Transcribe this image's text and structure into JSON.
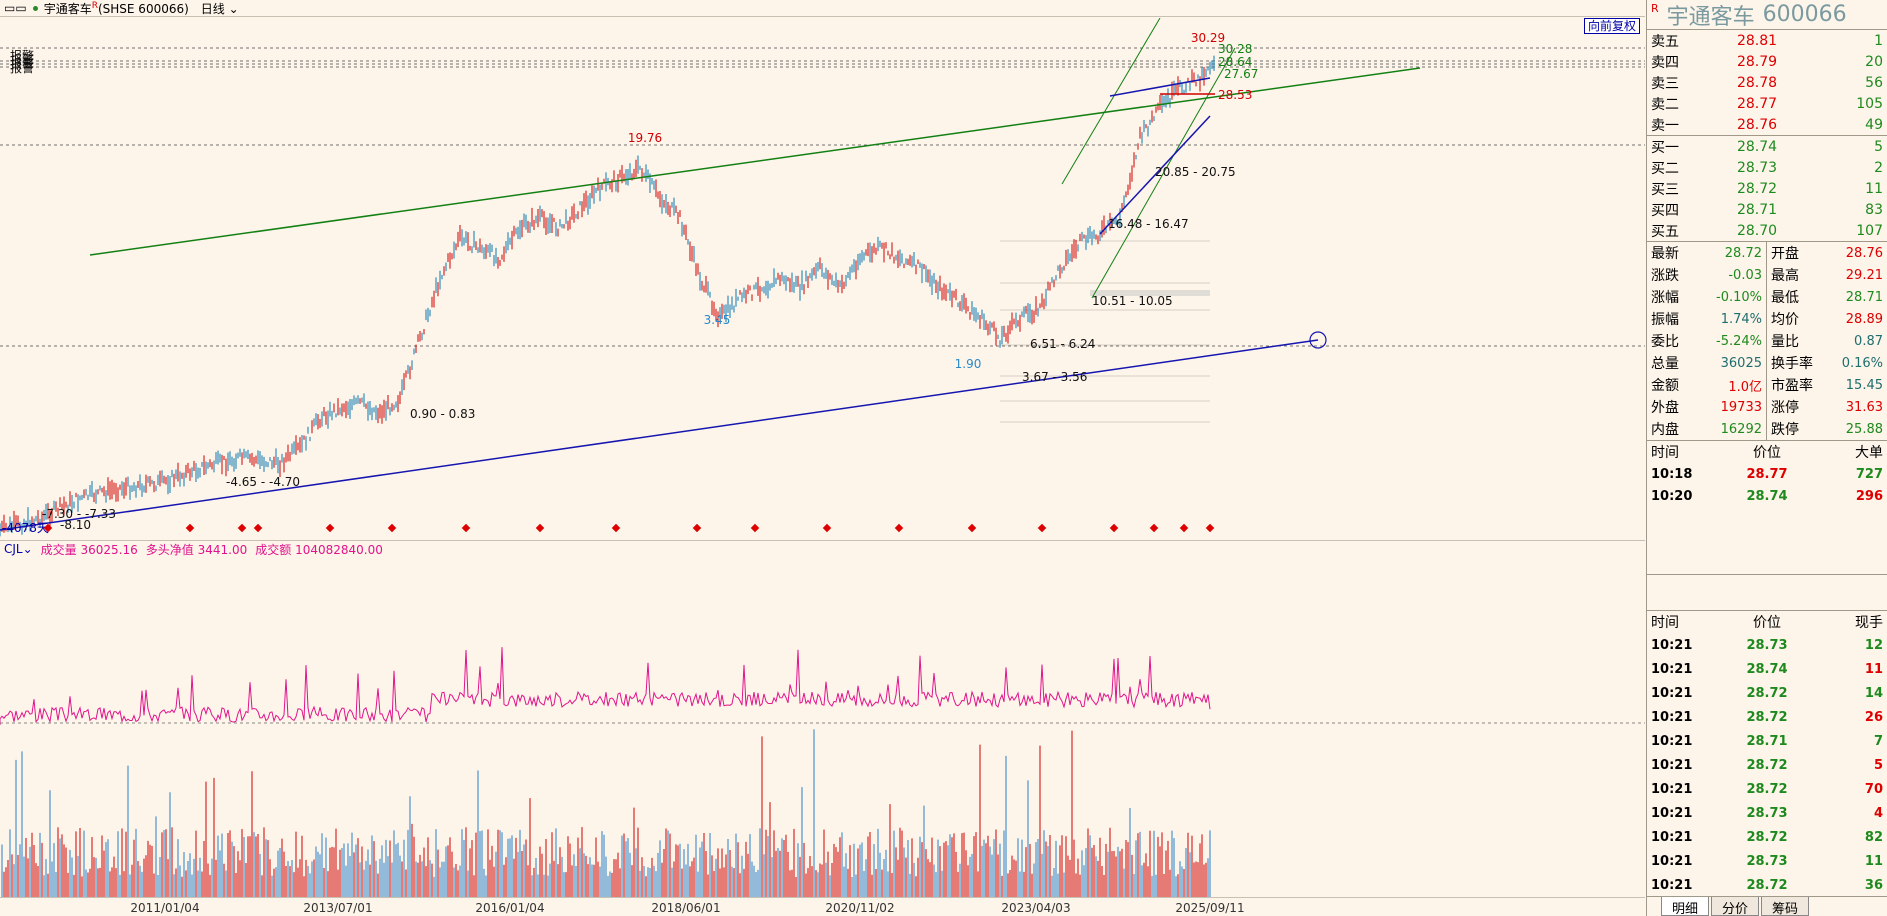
{
  "topbar": {
    "menu_glyph": "▭▭",
    "title": "宇通客车",
    "title_mark": "R",
    "code": "(SHSE 600066)",
    "period": "日线"
  },
  "restore_button": "向前复权",
  "price_labels": {
    "peak_2018": "19.76",
    "low_2019": "3.45",
    "low_2022": "1.90",
    "high_recent": "30.29",
    "r1": "30.28",
    "r2": "28.64",
    "r3": "27.67",
    "r4": "28.53",
    "gap1": "20.85 - 20.75",
    "gap2": "16.48 - 16.47",
    "gap3": "10.51 - 10.05",
    "gap4": "6.51 - 6.24",
    "gap5": "3.67 - 3.56",
    "gap6": "0.90 - 0.83",
    "gap7": "-4.65 - -4.70",
    "gap8": "-7.30 - -7.33",
    "gap9": "-8.10",
    "start_value": "-4078天",
    "alarm_labels": [
      "报警",
      "报警",
      "报警",
      "报警"
    ]
  },
  "volume_header": {
    "indicator": "CJL",
    "vol_label": "成交量",
    "vol_value": "36025.16",
    "net_label": "多头净值",
    "net_value": "3441.00",
    "amt_label": "成交额",
    "amt_value": "104082840.00"
  },
  "x_axis": [
    "2011/01/04",
    "2013/07/01",
    "2016/01/04",
    "2018/06/01",
    "2020/11/02",
    "2023/04/03",
    "2025/09/11"
  ],
  "stock": {
    "mark": "R",
    "name": "宇通客车",
    "code": "600066"
  },
  "order_book": {
    "sell": [
      {
        "label": "卖五",
        "price": "28.81",
        "vol": "1"
      },
      {
        "label": "卖四",
        "price": "28.79",
        "vol": "20"
      },
      {
        "label": "卖三",
        "price": "28.78",
        "vol": "56"
      },
      {
        "label": "卖二",
        "price": "28.77",
        "vol": "105"
      },
      {
        "label": "卖一",
        "price": "28.76",
        "vol": "49"
      }
    ],
    "buy": [
      {
        "label": "买一",
        "price": "28.74",
        "vol": "5"
      },
      {
        "label": "买二",
        "price": "28.73",
        "vol": "2"
      },
      {
        "label": "买三",
        "price": "28.72",
        "vol": "11"
      },
      {
        "label": "买四",
        "price": "28.71",
        "vol": "83"
      },
      {
        "label": "买五",
        "price": "28.70",
        "vol": "107"
      }
    ]
  },
  "quote": [
    {
      "k1": "最新",
      "v1": "28.72",
      "c1": "grn",
      "k2": "开盘",
      "v2": "28.76",
      "c2": "red"
    },
    {
      "k1": "涨跌",
      "v1": "-0.03",
      "c1": "grn",
      "k2": "最高",
      "v2": "29.21",
      "c2": "red"
    },
    {
      "k1": "涨幅",
      "v1": "-0.10%",
      "c1": "grn",
      "k2": "最低",
      "v2": "28.71",
      "c2": "grn"
    },
    {
      "k1": "振幅",
      "v1": "1.74%",
      "c1": "dark",
      "k2": "均价",
      "v2": "28.89",
      "c2": "red"
    },
    {
      "k1": "委比",
      "v1": "-5.24%",
      "c1": "grn",
      "k2": "量比",
      "v2": "0.87",
      "c2": "dark"
    },
    {
      "k1": "总量",
      "v1": "36025",
      "c1": "dark",
      "k2": "换手率",
      "v2": "0.16%",
      "c2": "dark"
    },
    {
      "k1": "金额",
      "v1": "1.0亿",
      "c1": "red",
      "k2": "市盈率",
      "v2": "15.45",
      "c2": "dark"
    },
    {
      "k1": "外盘",
      "v1": "19733",
      "c1": "red",
      "k2": "涨停",
      "v2": "31.63",
      "c2": "red"
    },
    {
      "k1": "内盘",
      "v1": "16292",
      "c1": "grn",
      "k2": "跌停",
      "v2": "25.88",
      "c2": "grn"
    }
  ],
  "big_orders": {
    "headers": [
      "时间",
      "价位",
      "大单"
    ],
    "rows": [
      {
        "time": "10:18",
        "price": "28.77",
        "pc": "red",
        "vol": "727",
        "vc": "grn"
      },
      {
        "time": "10:20",
        "price": "28.74",
        "pc": "grn",
        "vol": "296",
        "vc": "red"
      }
    ]
  },
  "ticks": {
    "headers": [
      "时间",
      "价位",
      "现手"
    ],
    "rows": [
      {
        "time": "10:21",
        "price": "28.73",
        "vol": "12",
        "vc": "grn"
      },
      {
        "time": "10:21",
        "price": "28.74",
        "vol": "11",
        "vc": "red"
      },
      {
        "time": "10:21",
        "price": "28.72",
        "vol": "14",
        "vc": "grn"
      },
      {
        "time": "10:21",
        "price": "28.72",
        "vol": "26",
        "vc": "red"
      },
      {
        "time": "10:21",
        "price": "28.71",
        "vol": "7",
        "vc": "grn"
      },
      {
        "time": "10:21",
        "price": "28.72",
        "vol": "5",
        "vc": "red"
      },
      {
        "time": "10:21",
        "price": "28.72",
        "vol": "70",
        "vc": "red"
      },
      {
        "time": "10:21",
        "price": "28.73",
        "vol": "4",
        "vc": "red"
      },
      {
        "time": "10:21",
        "price": "28.72",
        "vol": "82",
        "vc": "grn"
      },
      {
        "time": "10:21",
        "price": "28.73",
        "vol": "11",
        "vc": "grn"
      },
      {
        "time": "10:21",
        "price": "28.72",
        "vol": "36",
        "vc": "grn"
      }
    ]
  },
  "side_tabs": [
    "明细",
    "分价",
    "筹码"
  ],
  "colors": {
    "up": "#d00000",
    "down": "#1e8a1e",
    "trend_green": "#138013",
    "trend_blue": "#1515b0",
    "volume_pink": "#e0148c",
    "bar_blue": "#2a7fc8"
  }
}
